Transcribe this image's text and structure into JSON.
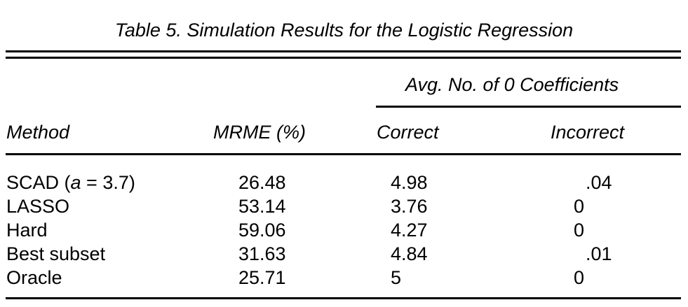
{
  "caption": "Table 5. Simulation Results for the Logistic Regression",
  "group_header": "Avg. No. of 0 Coefficients",
  "columns": {
    "method": "Method",
    "mrme": "MRME (%)",
    "correct": "Correct",
    "incorrect": "Incorrect"
  },
  "rows": [
    {
      "method_prefix": "SCAD (",
      "method_var": "a",
      "method_suffix": " = 3.7)",
      "mrme": "26.48",
      "correct": "4.98",
      "incorrect": ".04"
    },
    {
      "method": "LASSO",
      "mrme": "53.14",
      "correct": "3.76",
      "incorrect": "0"
    },
    {
      "method": "Hard",
      "mrme": "59.06",
      "correct": "4.27",
      "incorrect": "0"
    },
    {
      "method": "Best subset",
      "mrme": "31.63",
      "correct": "4.84",
      "incorrect": ".01"
    },
    {
      "method": "Oracle",
      "mrme": "25.71",
      "correct": "5",
      "incorrect": "0"
    }
  ]
}
